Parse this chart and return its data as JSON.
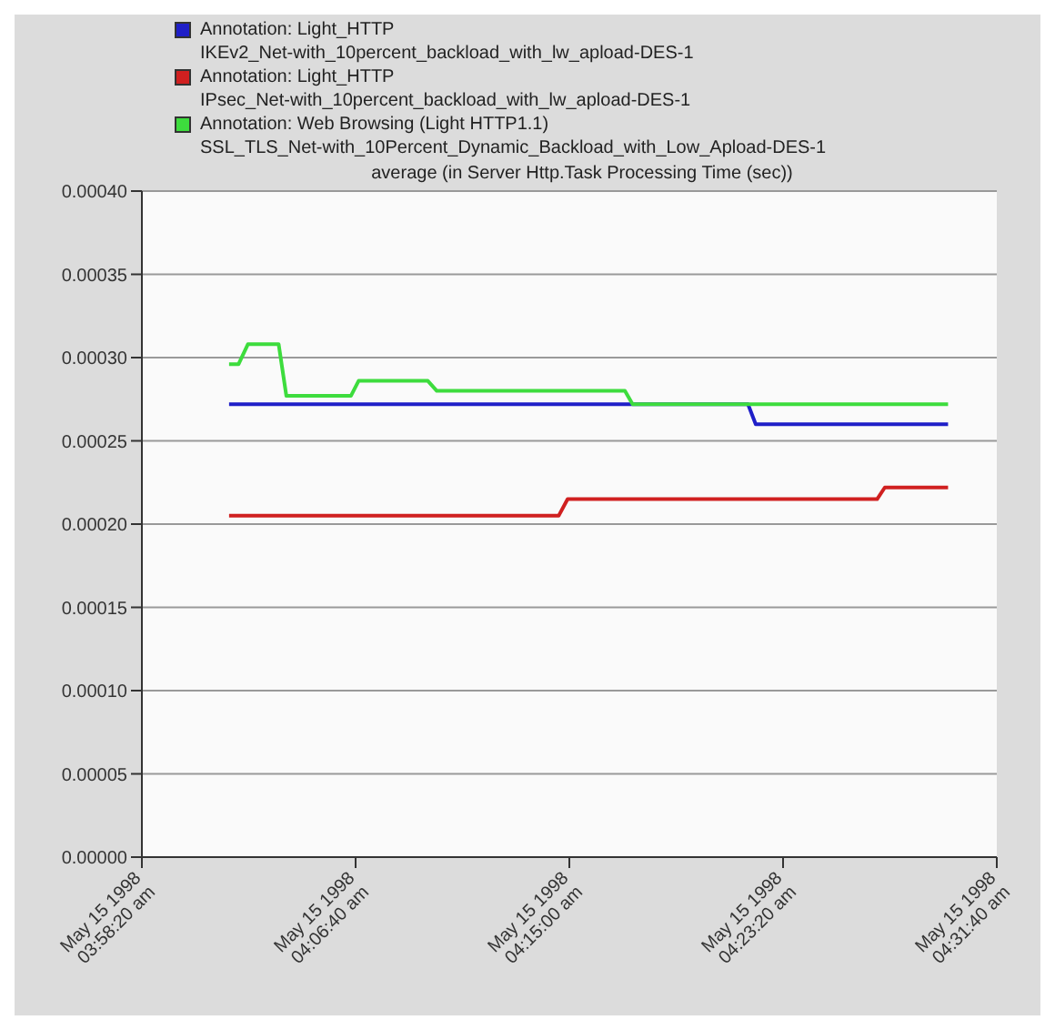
{
  "chart_data": {
    "type": "line",
    "title": "average (in Server Http.Task Processing Time (sec))",
    "legend": "top",
    "grid": "y",
    "marker": "none",
    "line_style": "solid",
    "xlim": [
      "1998-05-15T03:58:20",
      "1998-05-15T04:31:40"
    ],
    "xticks": [
      {
        "value": "1998-05-15T03:58:20",
        "label": "May 15 1998\n03:58:20 am"
      },
      {
        "value": "1998-05-15T04:06:40",
        "label": "May 15 1998\n04:06:40 am"
      },
      {
        "value": "1998-05-15T04:15:00",
        "label": "May 15 1998\n04:15:00 am"
      },
      {
        "value": "1998-05-15T04:23:20",
        "label": "May 15 1998\n04:23:20 am"
      },
      {
        "value": "1998-05-15T04:31:40",
        "label": "May 15 1998\n04:31:40 am"
      }
    ],
    "ylim": [
      0,
      0.0004
    ],
    "yticks": [
      {
        "value": 0,
        "label": "0.00000"
      },
      {
        "value": 5e-05,
        "label": "0.00005"
      },
      {
        "value": 0.0001,
        "label": "0.00010"
      },
      {
        "value": 0.00015,
        "label": "0.00015"
      },
      {
        "value": 0.0002,
        "label": "0.00020"
      },
      {
        "value": 0.00025,
        "label": "0.00025"
      },
      {
        "value": 0.0003,
        "label": "0.00030"
      },
      {
        "value": 0.00035,
        "label": "0.00035"
      },
      {
        "value": 0.0004,
        "label": "0.00040"
      }
    ],
    "series": [
      {
        "name": "Annotation: Light_HTTP\nIKEv2_Net-with_10percent_backload_with_lw_apload-DES-1",
        "color": "#1f1fc8",
        "x": [
          "1998-05-15T04:01:44",
          "1998-05-15T04:21:58",
          "1998-05-15T04:22:16",
          "1998-05-15T04:29:46"
        ],
        "values": [
          0.000272,
          0.000272,
          0.00026,
          0.00026
        ]
      },
      {
        "name": "Annotation: Light_HTTP\nIPsec_Net-with_10percent_backload_with_lw_apload-DES-1",
        "color": "#d02020",
        "x": [
          "1998-05-15T04:01:44",
          "1998-05-15T04:14:35",
          "1998-05-15T04:14:56",
          "1998-05-15T04:27:00",
          "1998-05-15T04:27:18",
          "1998-05-15T04:29:46"
        ],
        "values": [
          0.000205,
          0.000205,
          0.000215,
          0.000215,
          0.000222,
          0.000222
        ]
      },
      {
        "name": "Annotation: Web Browsing (Light HTTP1.1)\nSSL_TLS_Net-with_10Percent_Dynamic_Backload_with_Low_Apload-DES-1",
        "color": "#3ddc3d",
        "x": [
          "1998-05-15T04:01:44",
          "1998-05-15T04:02:06",
          "1998-05-15T04:02:28",
          "1998-05-15T04:03:40",
          "1998-05-15T04:03:58",
          "1998-05-15T04:06:29",
          "1998-05-15T04:06:47",
          "1998-05-15T04:09:29",
          "1998-05-15T04:09:50",
          "1998-05-15T04:17:10",
          "1998-05-15T04:17:28",
          "1998-05-15T04:29:46"
        ],
        "values": [
          0.000296,
          0.000296,
          0.000308,
          0.000308,
          0.000277,
          0.000277,
          0.000286,
          0.000286,
          0.00028,
          0.00028,
          0.000272,
          0.000272
        ]
      }
    ]
  }
}
